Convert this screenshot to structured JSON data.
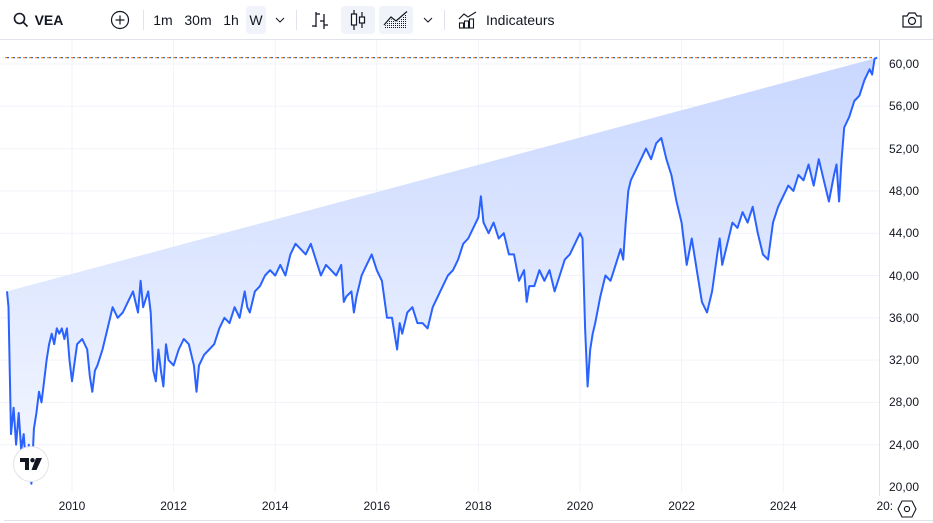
{
  "toolbar": {
    "symbol": "VEA",
    "intervals": [
      {
        "label": "1m",
        "active": false
      },
      {
        "label": "30m",
        "active": false
      },
      {
        "label": "1h",
        "active": false
      },
      {
        "label": "W",
        "active": true
      }
    ],
    "indicators_label": "Indicateurs",
    "icons": {
      "search": "search-icon",
      "compare": "plus-circle-icon",
      "interval_dropdown": "chevron-down-icon",
      "bars": "bar-chart-icon",
      "candles": "candlestick-icon",
      "area": "area-chart-icon",
      "chart_type_dropdown": "chevron-down-icon",
      "indicators": "indicators-icon",
      "snapshot": "camera-icon"
    }
  },
  "colors": {
    "line": "#2962ff",
    "fill_top": "#c9d7ff",
    "fill_bottom": "#f5f8ff",
    "grid": "#f0f3fa",
    "last_price_line_a": "#f7931a",
    "last_price_line_b": "#2962ff"
  },
  "axis": {
    "y_labels": [
      "60,00",
      "56,00",
      "52,00",
      "48,00",
      "44,00",
      "40,00",
      "36,00",
      "32,00",
      "28,00",
      "24,00",
      "20,00"
    ],
    "x_labels": [
      "2010",
      "2012",
      "2014",
      "2016",
      "2018",
      "2020",
      "2022",
      "2024",
      "20:"
    ]
  },
  "chart_data": {
    "type": "area",
    "title": "VEA",
    "interval": "W",
    "xlabel": "",
    "ylabel": "",
    "ylim": [
      20,
      61
    ],
    "xlim": [
      2008.7,
      2025.9
    ],
    "grid": true,
    "legend": null,
    "last_price": 60.6,
    "x": [
      2008.7,
      2008.75,
      2008.8,
      2008.85,
      2008.9,
      2008.95,
      2009.0,
      2009.05,
      2009.1,
      2009.15,
      2009.2,
      2009.25,
      2009.3,
      2009.35,
      2009.4,
      2009.45,
      2009.5,
      2009.55,
      2009.6,
      2009.65,
      2009.7,
      2009.75,
      2009.8,
      2009.85,
      2009.9,
      2009.95,
      2010.0,
      2010.1,
      2010.2,
      2010.3,
      2010.35,
      2010.4,
      2010.45,
      2010.5,
      2010.6,
      2010.7,
      2010.8,
      2010.9,
      2011.0,
      2011.1,
      2011.2,
      2011.3,
      2011.35,
      2011.4,
      2011.5,
      2011.55,
      2011.6,
      2011.65,
      2011.7,
      2011.75,
      2011.8,
      2011.85,
      2011.9,
      2012.0,
      2012.1,
      2012.2,
      2012.3,
      2012.4,
      2012.45,
      2012.5,
      2012.6,
      2012.7,
      2012.8,
      2012.9,
      2013.0,
      2013.1,
      2013.2,
      2013.3,
      2013.4,
      2013.45,
      2013.5,
      2013.6,
      2013.7,
      2013.8,
      2013.9,
      2014.0,
      2014.1,
      2014.2,
      2014.3,
      2014.4,
      2014.5,
      2014.6,
      2014.7,
      2014.8,
      2014.9,
      2015.0,
      2015.1,
      2015.2,
      2015.3,
      2015.35,
      2015.4,
      2015.5,
      2015.55,
      2015.6,
      2015.7,
      2015.8,
      2015.9,
      2016.0,
      2016.05,
      2016.1,
      2016.2,
      2016.3,
      2016.4,
      2016.45,
      2016.5,
      2016.6,
      2016.7,
      2016.8,
      2016.9,
      2017.0,
      2017.1,
      2017.2,
      2017.3,
      2017.4,
      2017.5,
      2017.6,
      2017.7,
      2017.8,
      2017.9,
      2018.0,
      2018.05,
      2018.1,
      2018.2,
      2018.3,
      2018.4,
      2018.5,
      2018.6,
      2018.7,
      2018.8,
      2018.9,
      2018.95,
      2019.0,
      2019.1,
      2019.2,
      2019.3,
      2019.4,
      2019.5,
      2019.6,
      2019.7,
      2019.8,
      2019.9,
      2020.0,
      2020.05,
      2020.1,
      2020.15,
      2020.2,
      2020.25,
      2020.3,
      2020.4,
      2020.5,
      2020.6,
      2020.7,
      2020.8,
      2020.85,
      2020.9,
      2020.95,
      2021.0,
      2021.1,
      2021.2,
      2021.3,
      2021.4,
      2021.5,
      2021.6,
      2021.7,
      2021.8,
      2021.9,
      2022.0,
      2022.1,
      2022.2,
      2022.3,
      2022.4,
      2022.5,
      2022.6,
      2022.7,
      2022.75,
      2022.8,
      2022.9,
      2023.0,
      2023.1,
      2023.2,
      2023.3,
      2023.4,
      2023.5,
      2023.6,
      2023.7,
      2023.8,
      2023.9,
      2024.0,
      2024.1,
      2024.2,
      2024.3,
      2024.4,
      2024.5,
      2024.6,
      2024.7,
      2024.8,
      2024.9,
      2025.0,
      2025.05,
      2025.1,
      2025.15,
      2025.2,
      2025.3,
      2025.4,
      2025.5,
      2025.6,
      2025.7,
      2025.75,
      2025.8,
      2025.85,
      2025.9
    ],
    "values": [
      38.5,
      37.0,
      25.0,
      27.5,
      24.0,
      27.0,
      23.5,
      25.0,
      21.5,
      24.0,
      20.3,
      25.5,
      27.0,
      29.0,
      28.0,
      30.0,
      32.0,
      33.5,
      34.5,
      33.5,
      35.0,
      34.5,
      35.0,
      34.0,
      35.0,
      32.0,
      30.0,
      33.5,
      34.0,
      33.0,
      30.5,
      29.0,
      31.0,
      31.5,
      33.0,
      35.0,
      37.0,
      36.0,
      36.5,
      37.5,
      38.5,
      36.5,
      39.5,
      37.0,
      38.5,
      36.5,
      31.0,
      30.0,
      33.0,
      31.0,
      29.5,
      33.5,
      32.0,
      31.5,
      33.0,
      34.0,
      33.5,
      31.5,
      29.0,
      31.5,
      32.5,
      33.0,
      33.5,
      35.0,
      36.0,
      35.5,
      37.0,
      36.0,
      38.5,
      37.0,
      36.5,
      38.5,
      39.0,
      40.0,
      40.5,
      40.0,
      41.0,
      40.0,
      42.0,
      43.0,
      42.5,
      42.0,
      43.0,
      41.5,
      40.0,
      41.0,
      40.5,
      40.0,
      41.0,
      37.5,
      38.0,
      38.5,
      36.5,
      38.0,
      40.0,
      41.0,
      42.0,
      40.5,
      40.0,
      39.5,
      36.0,
      36.0,
      33.0,
      35.5,
      34.5,
      36.5,
      37.0,
      35.5,
      35.5,
      35.0,
      37.0,
      38.0,
      39.0,
      40.0,
      40.5,
      41.5,
      43.0,
      43.5,
      44.5,
      45.5,
      47.5,
      45.0,
      44.0,
      45.0,
      43.5,
      44.0,
      42.0,
      42.0,
      39.5,
      40.5,
      37.5,
      39.0,
      39.0,
      40.5,
      39.5,
      40.5,
      38.5,
      40.0,
      41.5,
      42.0,
      43.0,
      44.0,
      43.5,
      35.0,
      29.5,
      33.0,
      34.5,
      35.5,
      38.0,
      40.0,
      39.5,
      41.0,
      42.5,
      41.5,
      45.0,
      48.0,
      49.0,
      50.0,
      51.0,
      52.0,
      51.0,
      52.5,
      53.0,
      51.0,
      49.5,
      47.0,
      45.0,
      41.0,
      43.5,
      40.5,
      37.5,
      36.5,
      38.5,
      42.0,
      43.5,
      41.0,
      43.0,
      45.0,
      44.5,
      46.0,
      45.0,
      46.5,
      44.0,
      42.0,
      41.5,
      45.0,
      46.5,
      47.5,
      48.5,
      48.0,
      49.5,
      49.0,
      50.5,
      48.5,
      51.0,
      49.0,
      47.0,
      49.5,
      50.5,
      47.0,
      51.0,
      54.0,
      55.0,
      56.5,
      57.0,
      58.5,
      59.5,
      59.0,
      60.5,
      60.6
    ]
  }
}
